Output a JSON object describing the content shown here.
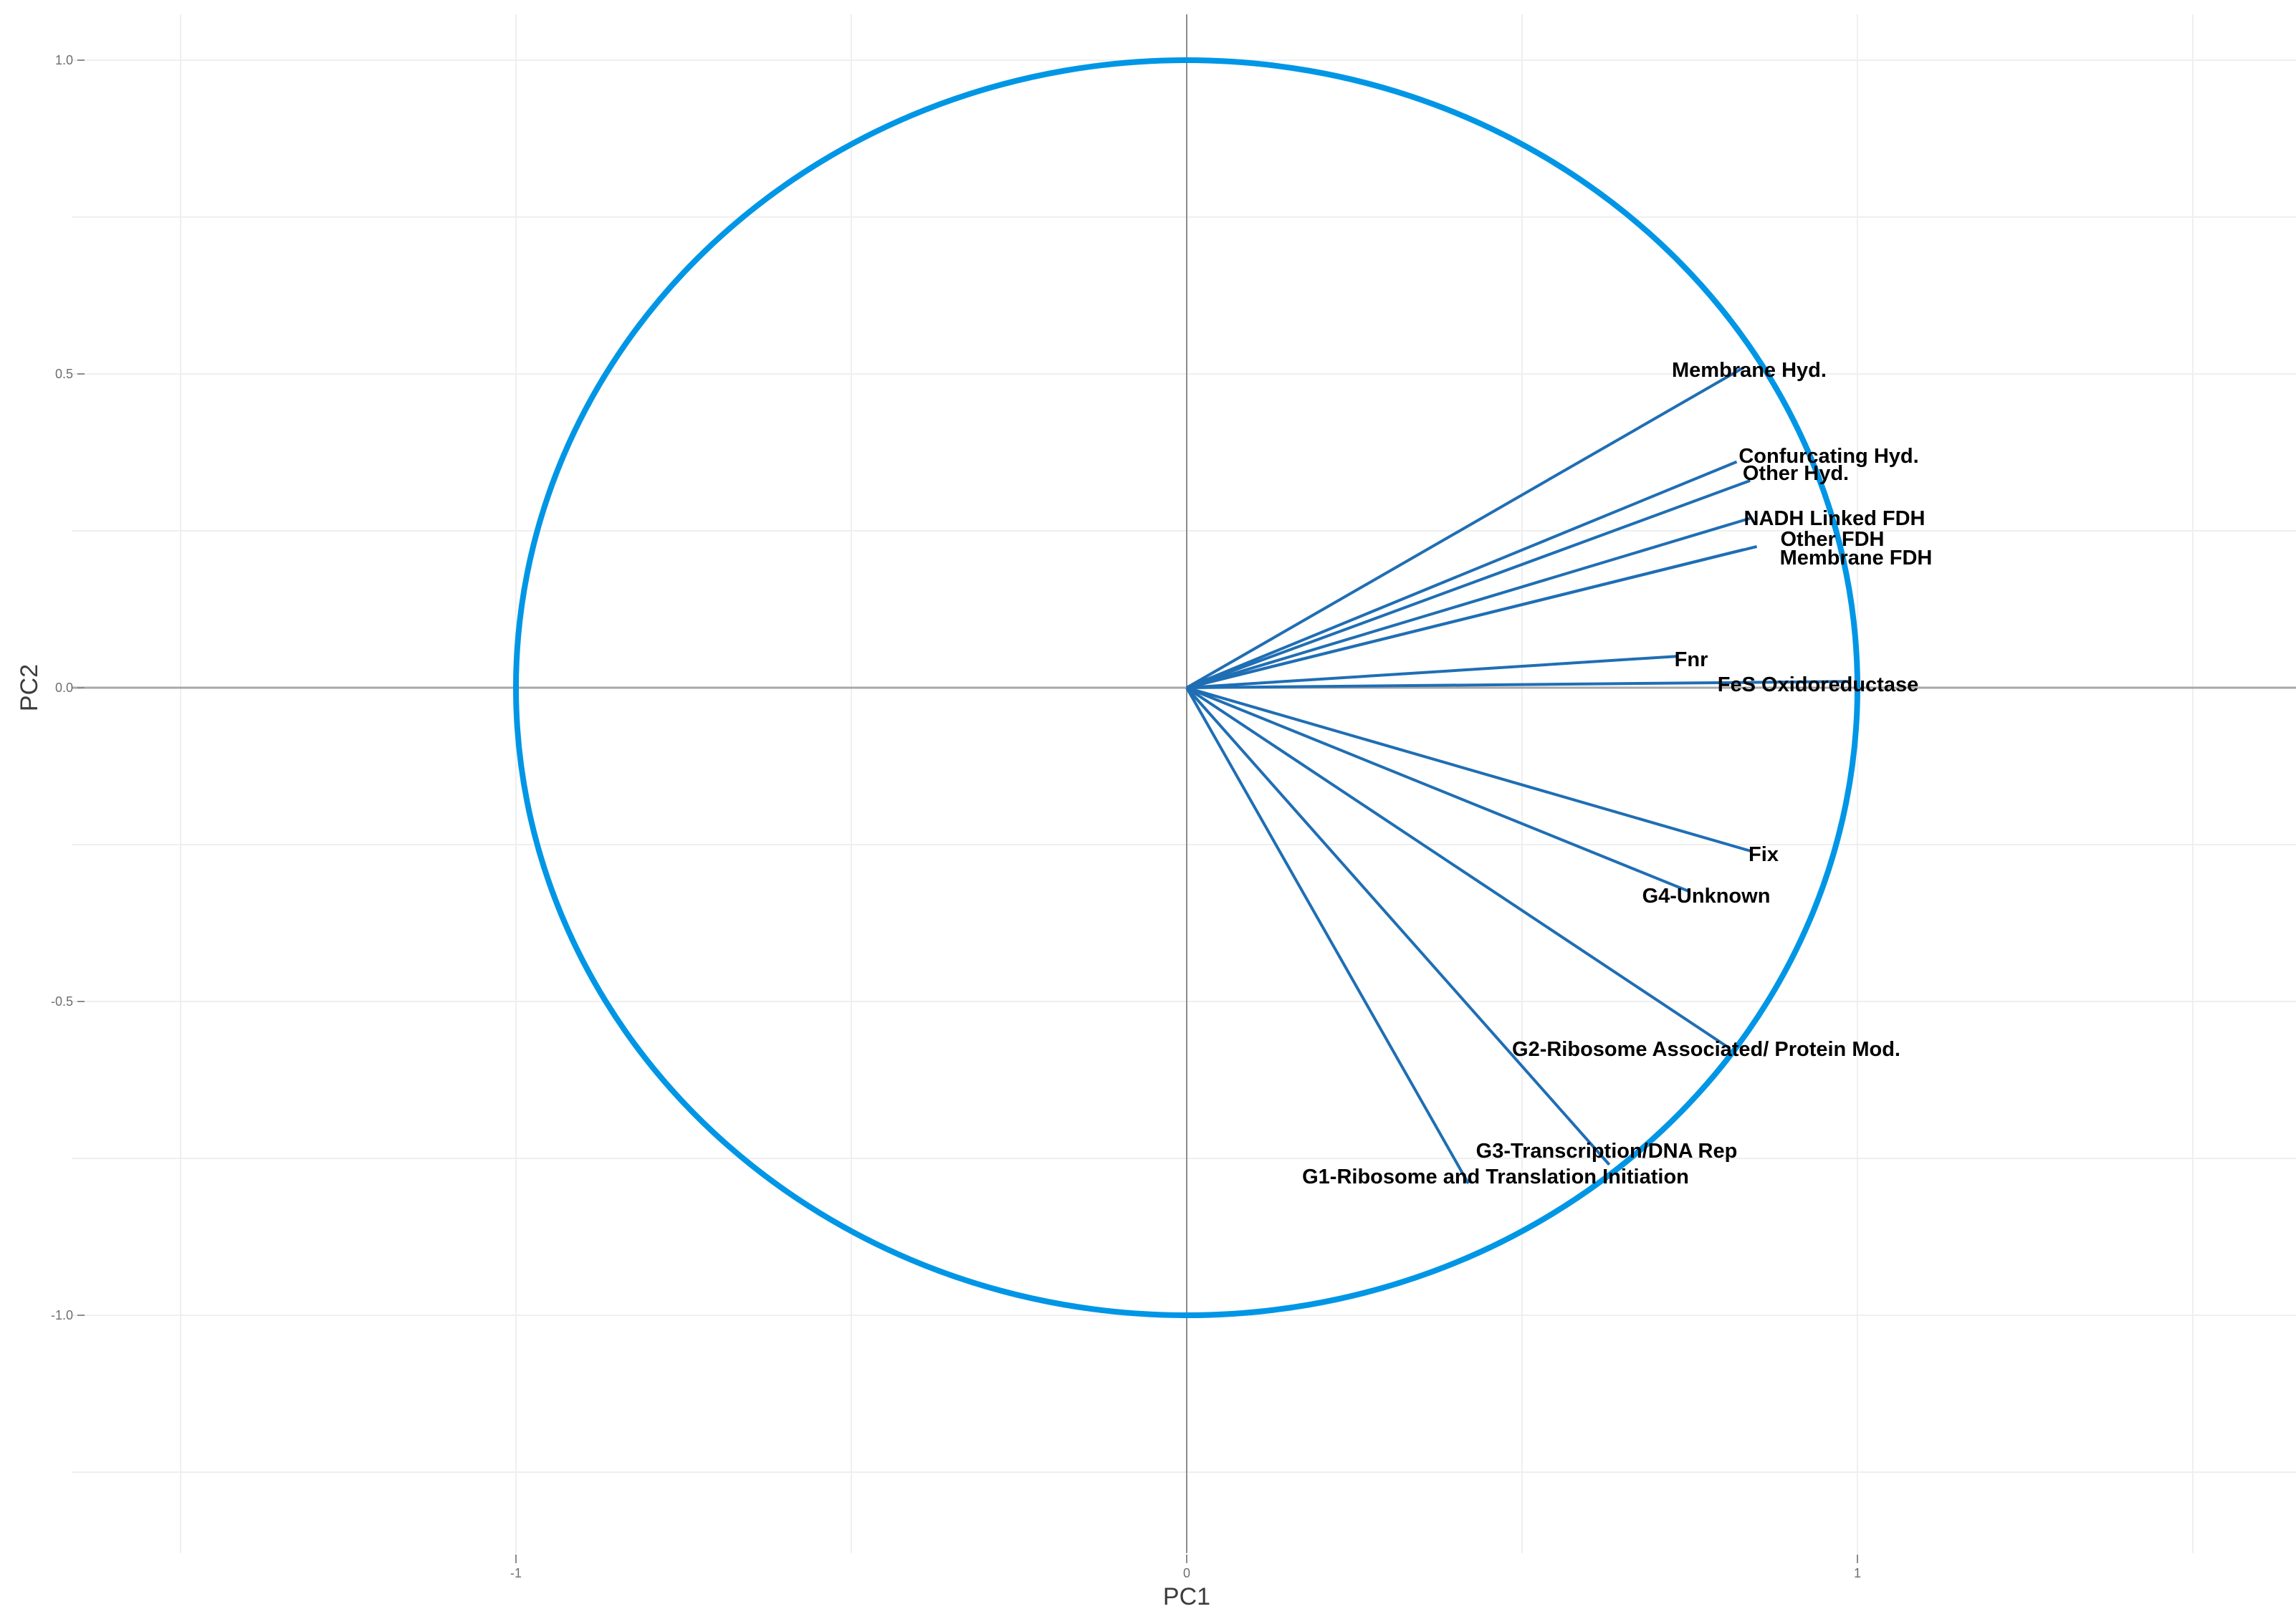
{
  "chart_data": {
    "type": "scatter",
    "subtype": "pca-correlation-circle",
    "xlabel": "PC1",
    "ylabel": "PC2",
    "xlim": [
      -1.75,
      1.65
    ],
    "ylim": [
      -1.38,
      1.07
    ],
    "x_ticks": [
      -1,
      0,
      1
    ],
    "x_tick_labels": [
      "-1",
      "0",
      "1"
    ],
    "y_ticks": [
      1.0,
      0.5,
      0.0,
      -0.5,
      -1.0
    ],
    "y_tick_labels": [
      "1.0",
      "0.5",
      "0.0",
      "-0.5",
      "-1.0"
    ],
    "x_minor_gridlines": [
      -1.5,
      -0.5,
      0.5,
      1.5
    ],
    "y_minor_gridlines": [
      0.75,
      0.25,
      -0.25,
      -0.75,
      -1.25
    ],
    "grid": true,
    "reference_lines": [
      0,
      0
    ],
    "circle": {
      "radius": 1,
      "color": "#0096e6"
    },
    "arrow_color": "#1f6eb4",
    "vectors": [
      {
        "label": "Membrane Hyd.",
        "x": 0.83,
        "y": 0.51
      },
      {
        "label": "Confurcating Hyd.",
        "x": 0.82,
        "y": 0.36
      },
      {
        "label": "Other Hyd.",
        "x": 0.84,
        "y": 0.33
      },
      {
        "label": "NADH Linked FDH",
        "x": 0.84,
        "y": 0.27
      },
      {
        "label": "Other FDH",
        "x": 0.83,
        "y": 0.22
      },
      {
        "label": "Membrane FDH",
        "x": 0.85,
        "y": 0.225
      },
      {
        "label": "Fnr",
        "x": 0.73,
        "y": 0.05
      },
      {
        "label": "FeS Oxidoreductase",
        "x": 0.99,
        "y": 0.01
      },
      {
        "label": "Fix",
        "x": 0.84,
        "y": -0.26
      },
      {
        "label": "G4-Unknown",
        "x": 0.75,
        "y": -0.325
      },
      {
        "label": "G2-Ribosome Associated/ Protein Mod.",
        "x": 0.81,
        "y": -0.575
      },
      {
        "label": "G3-Transcription/DNA Rep",
        "x": 0.63,
        "y": -0.76
      },
      {
        "label": "G1-Ribosome and Translation Initiation",
        "x": 0.42,
        "y": -0.79
      }
    ]
  }
}
